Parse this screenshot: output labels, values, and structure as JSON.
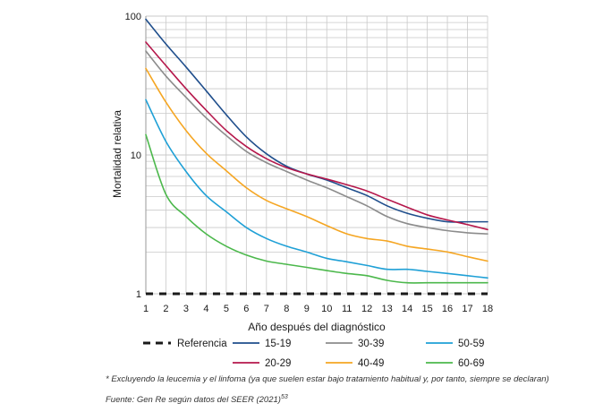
{
  "chart_data": {
    "type": "line",
    "ylabel": "Mortalidad relativa",
    "xlabel": "Año después del diagnóstico",
    "x": [
      1,
      2,
      3,
      4,
      5,
      6,
      7,
      8,
      9,
      10,
      11,
      12,
      13,
      14,
      15,
      16,
      17,
      18
    ],
    "xlim": [
      1,
      18
    ],
    "ylim": [
      1,
      100
    ],
    "yscale": "log",
    "ytick_labels": [
      "1",
      "10",
      "100"
    ],
    "grid": true,
    "legend_position": "bottom",
    "series": [
      {
        "name": "15-19",
        "color": "#1f4e8c",
        "values": [
          95,
          63,
          43,
          29,
          19.5,
          13.5,
          10.2,
          8.3,
          7.3,
          6.6,
          5.8,
          5.1,
          4.3,
          3.8,
          3.5,
          3.3,
          3.3,
          3.3
        ]
      },
      {
        "name": "20-29",
        "color": "#b5174b",
        "values": [
          65,
          44,
          30,
          21,
          15,
          11.5,
          9.4,
          8.1,
          7.3,
          6.7,
          6.1,
          5.5,
          4.8,
          4.2,
          3.7,
          3.4,
          3.15,
          2.9
        ]
      },
      {
        "name": "30-39",
        "color": "#8c8c8c",
        "values": [
          56,
          37,
          26,
          18.5,
          13.8,
          10.6,
          8.8,
          7.6,
          6.6,
          5.8,
          5.0,
          4.3,
          3.6,
          3.2,
          3.0,
          2.85,
          2.75,
          2.7
        ]
      },
      {
        "name": "40-49",
        "color": "#f5a623",
        "values": [
          42,
          24,
          15,
          10.3,
          7.7,
          5.8,
          4.7,
          4.1,
          3.6,
          3.1,
          2.7,
          2.5,
          2.4,
          2.2,
          2.1,
          2.0,
          1.85,
          1.72
        ]
      },
      {
        "name": "50-59",
        "color": "#1fa0d6",
        "values": [
          25,
          12.5,
          7.6,
          5.1,
          3.9,
          3.0,
          2.5,
          2.2,
          2.0,
          1.8,
          1.7,
          1.6,
          1.5,
          1.5,
          1.45,
          1.4,
          1.35,
          1.3
        ]
      },
      {
        "name": "60-69",
        "color": "#4cb84c",
        "values": [
          14,
          5.2,
          3.6,
          2.7,
          2.2,
          1.9,
          1.72,
          1.63,
          1.55,
          1.47,
          1.4,
          1.35,
          1.25,
          1.2,
          1.2,
          1.2,
          1.2,
          1.2
        ]
      }
    ],
    "reference": {
      "name": "Referencia",
      "value": 1,
      "color": "#1a1a1a"
    }
  },
  "footnotes": {
    "note": "* Excluyendo la leucemia y el linfoma (ya que suelen estar bajo tratamiento habitual y, por tanto, siempre se declaran)",
    "source": "Fuente: Gen Re según datos del SEER (2021)",
    "source_ref": "53"
  }
}
